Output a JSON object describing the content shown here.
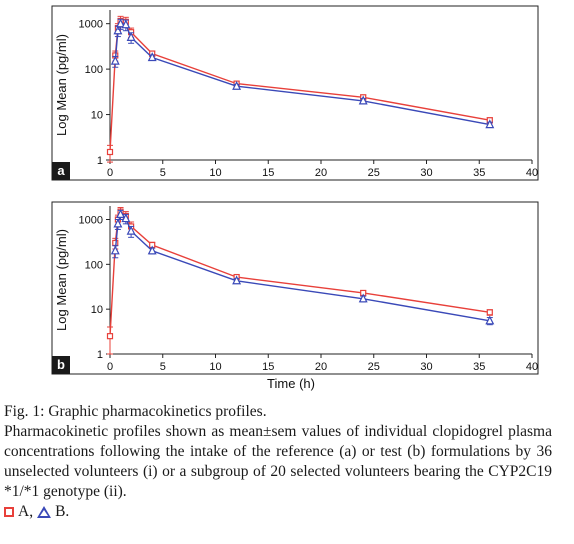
{
  "colors": {
    "A": "#e8403a",
    "B": "#3a49b8"
  },
  "chart_data": [
    {
      "type": "line",
      "panel_label": "a",
      "xlabel": "",
      "ylabel": "Log Mean (pg/ml)",
      "y_scale": "log",
      "xlim": [
        0,
        40
      ],
      "ylim": [
        1,
        2000
      ],
      "x_ticks": [
        "0",
        "5",
        "10",
        "15",
        "20",
        "25",
        "30",
        "35",
        "40"
      ],
      "y_ticks": [
        "1",
        "10",
        "100",
        "1000"
      ],
      "x": [
        0,
        0.5,
        0.75,
        1,
        1.5,
        2,
        4,
        12,
        24,
        36
      ],
      "series": [
        {
          "name": "A",
          "marker": "square",
          "values": [
            1.5,
            200,
            800,
            1150,
            1100,
            650,
            220,
            48,
            24,
            7.5
          ],
          "err": [
            0.6,
            50,
            200,
            300,
            280,
            150,
            30,
            5,
            3,
            1
          ]
        },
        {
          "name": "B",
          "marker": "triangle",
          "values": [
            0,
            150,
            700,
            1000,
            950,
            500,
            180,
            42,
            20,
            6.0
          ],
          "err": [
            0,
            40,
            180,
            250,
            250,
            130,
            25,
            4,
            2.5,
            0.8
          ]
        }
      ]
    },
    {
      "type": "line",
      "panel_label": "b",
      "xlabel": "Time (h)",
      "ylabel": "Log Mean (pg/ml)",
      "y_scale": "log",
      "xlim": [
        0,
        40
      ],
      "ylim": [
        1,
        2000
      ],
      "x_ticks": [
        "0",
        "5",
        "10",
        "15",
        "20",
        "25",
        "30",
        "35",
        "40"
      ],
      "y_ticks": [
        "1",
        "10",
        "100",
        "1000"
      ],
      "x": [
        0,
        0.5,
        0.75,
        1,
        1.5,
        2,
        4,
        12,
        24,
        36
      ],
      "series": [
        {
          "name": "A",
          "marker": "square",
          "values": [
            2.5,
            300,
            1000,
            1500,
            1200,
            700,
            270,
            52,
            23,
            8.5
          ],
          "err": [
            1.5,
            80,
            250,
            350,
            300,
            180,
            40,
            6,
            3,
            1.2
          ]
        },
        {
          "name": "B",
          "marker": "triangle",
          "values": [
            0,
            200,
            800,
            1300,
            1050,
            550,
            200,
            43,
            17,
            5.5
          ],
          "err": [
            0,
            60,
            200,
            300,
            250,
            150,
            30,
            5,
            2.5,
            1
          ]
        }
      ]
    }
  ],
  "caption": {
    "title": "Fig. 1: Graphic pharmacokinetics profiles.",
    "body": "Pharmacokinetic profiles shown as mean±sem values of individual clopidogrel plasma concentrations following the intake of the reference (a) or test (b) formulations by 36 unselected volunteers (i) or a subgroup of 20 selected volunteers bearing the CYP2C19 *1/*1 genotype (ii).",
    "legend_a": "A,",
    "legend_b": "B."
  }
}
